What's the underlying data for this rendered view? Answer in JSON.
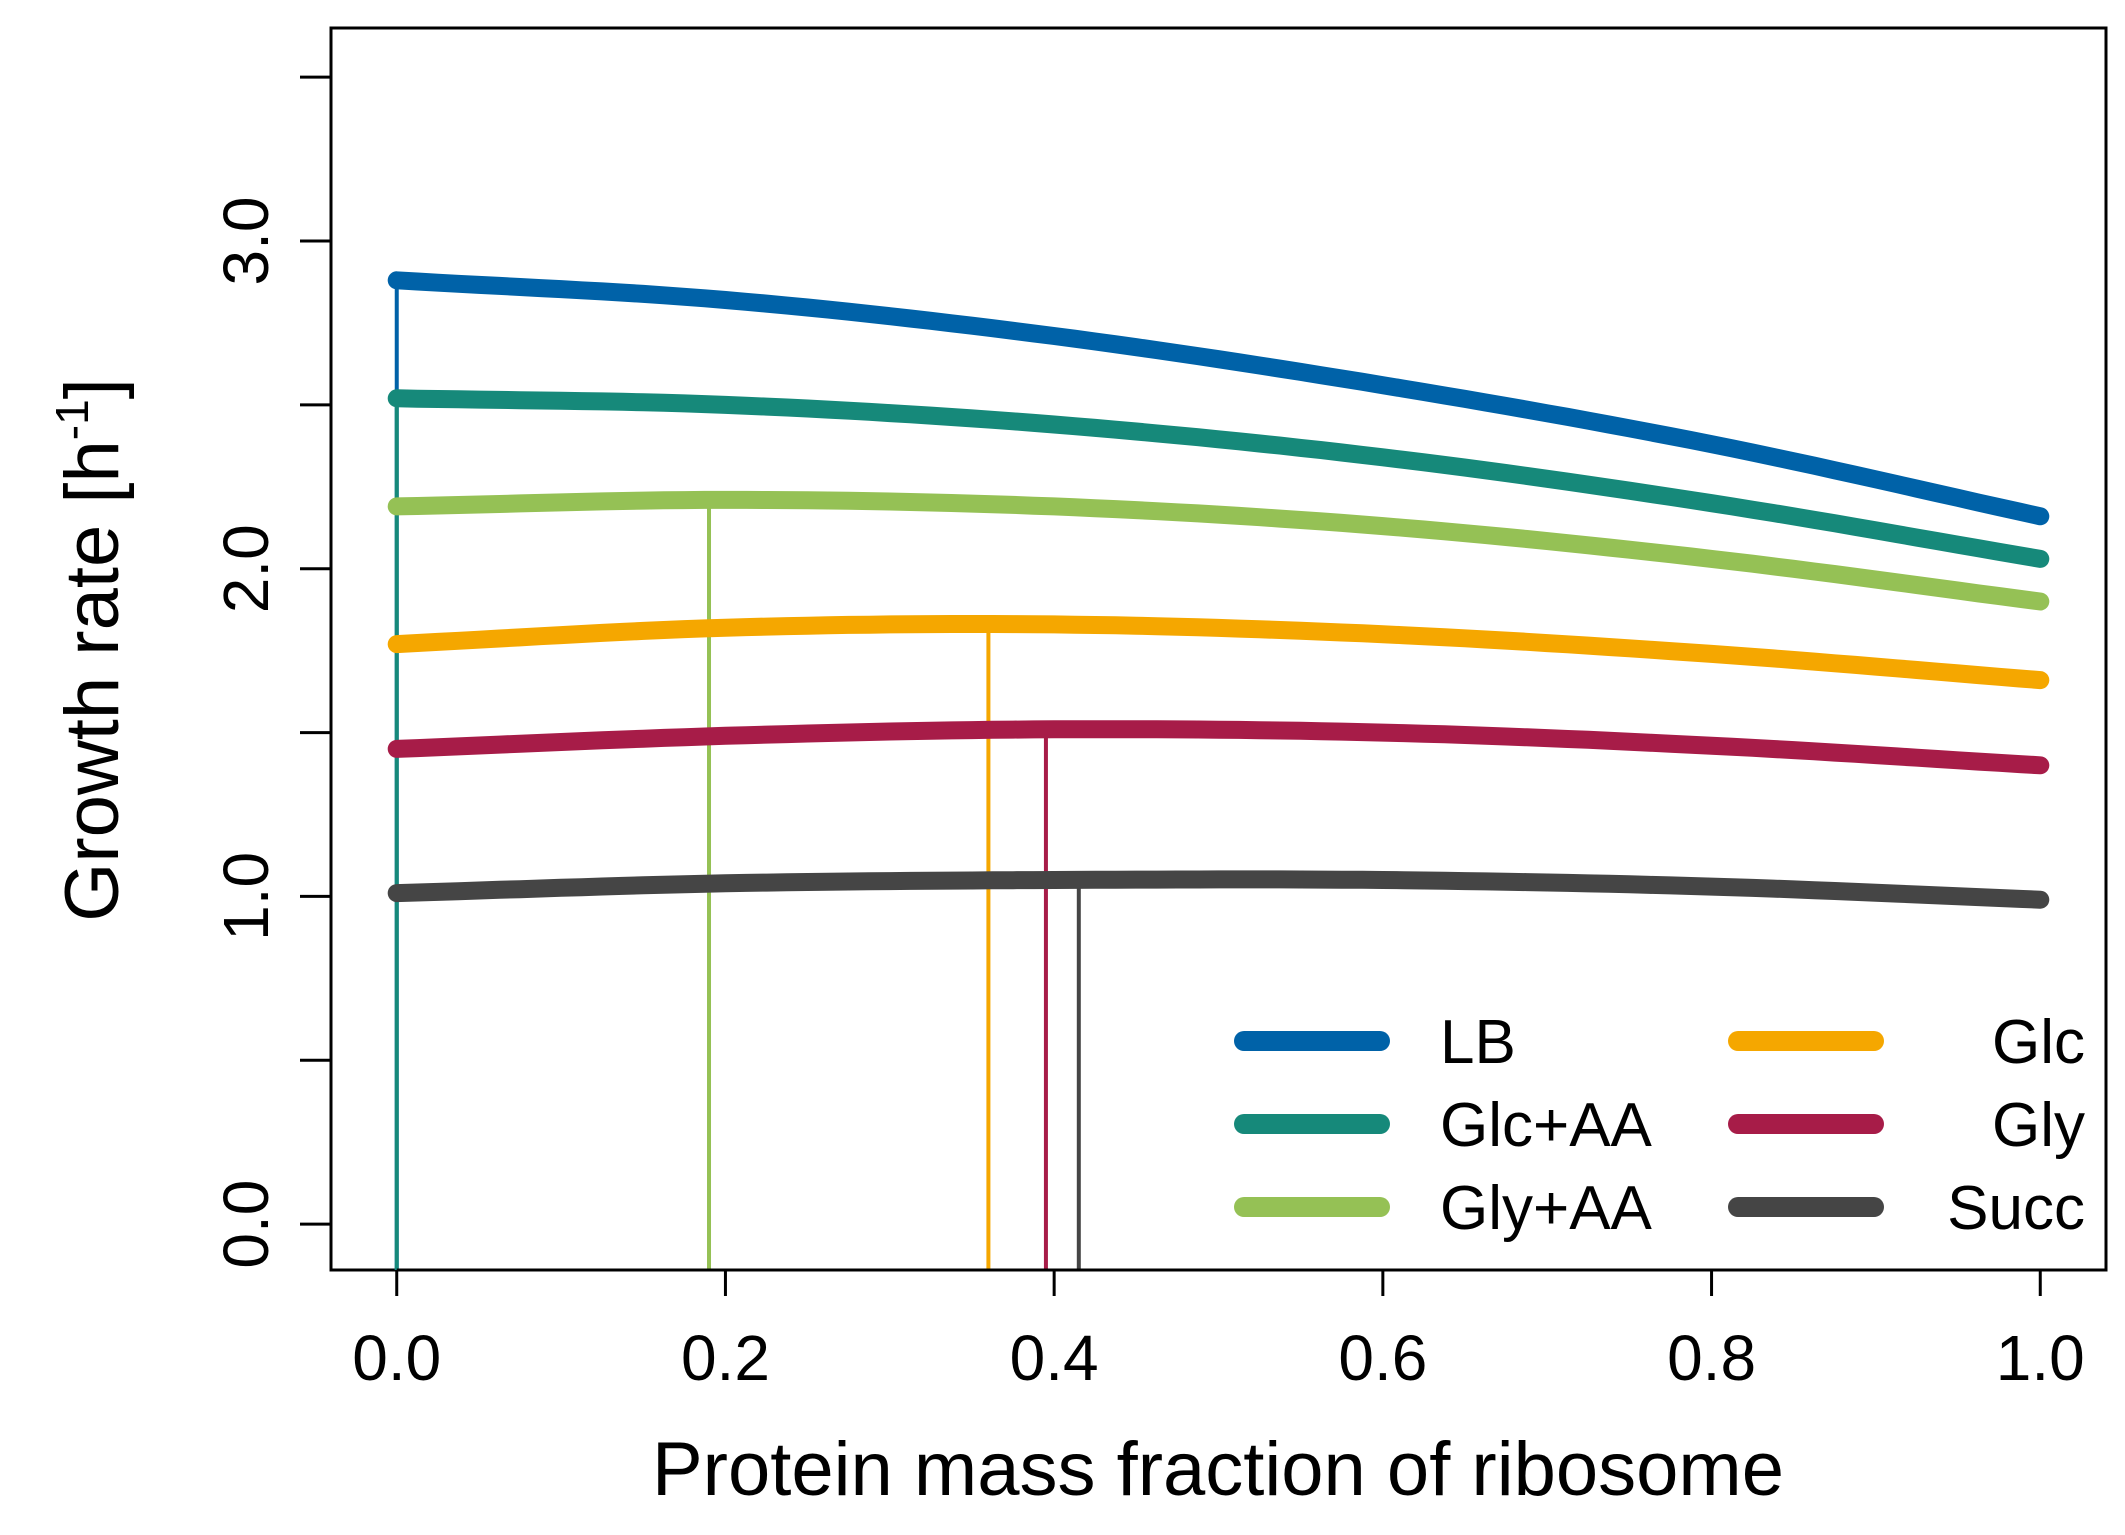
{
  "chart_data": {
    "type": "line",
    "xlabel": "Protein mass fraction of ribosome",
    "ylabel_main": "Growth rate [h",
    "ylabel_sup": "-1",
    "ylabel_close": "]",
    "xlim": [
      -0.04,
      1.04
    ],
    "ylim": [
      -0.14,
      3.65
    ],
    "x_ticks": [
      0.0,
      0.2,
      0.4,
      0.6,
      0.8,
      1.0
    ],
    "x_tick_labels": [
      "0.0",
      "0.2",
      "0.4",
      "0.6",
      "0.8",
      "1.0"
    ],
    "y_ticks": [
      0.0,
      0.5,
      1.0,
      1.5,
      2.0,
      2.5,
      3.0,
      3.5
    ],
    "y_tick_labels": [
      "0.0",
      "",
      "1.0",
      "",
      "2.0",
      "",
      "3.0",
      ""
    ],
    "grid": false,
    "legend_position": "bottom-right",
    "series": [
      {
        "name": "LB",
        "color": "#0062a8",
        "x": [
          0,
          0.2,
          0.4,
          0.6,
          0.8,
          1.0
        ],
        "y": [
          2.88,
          2.82,
          2.71,
          2.56,
          2.38,
          2.16
        ],
        "optimum_x": 0.0
      },
      {
        "name": "Glc+AA",
        "color": "#16897a",
        "x": [
          0,
          0.2,
          0.4,
          0.6,
          0.8,
          1.0
        ],
        "y": [
          2.52,
          2.5,
          2.44,
          2.34,
          2.2,
          2.03
        ],
        "optimum_x": 0.0
      },
      {
        "name": "Gly+AA",
        "color": "#95c155",
        "x": [
          0,
          0.2,
          0.4,
          0.6,
          0.8,
          1.0
        ],
        "y": [
          2.19,
          2.21,
          2.19,
          2.13,
          2.03,
          1.9
        ],
        "optimum_x": 0.19
      },
      {
        "name": "Glc",
        "color": "#f5a700",
        "x": [
          0,
          0.2,
          0.4,
          0.6,
          0.8,
          1.0
        ],
        "y": [
          1.77,
          1.82,
          1.83,
          1.8,
          1.74,
          1.66
        ],
        "optimum_x": 0.36
      },
      {
        "name": "Gly",
        "color": "#a71c48",
        "x": [
          0,
          0.2,
          0.4,
          0.6,
          0.8,
          1.0
        ],
        "y": [
          1.45,
          1.49,
          1.51,
          1.5,
          1.46,
          1.4
        ],
        "optimum_x": 0.395
      },
      {
        "name": "Succ",
        "color": "#454545",
        "x": [
          0,
          0.2,
          0.4,
          0.6,
          0.8,
          1.0
        ],
        "y": [
          1.01,
          1.04,
          1.05,
          1.05,
          1.03,
          0.99
        ],
        "optimum_x": 0.415
      }
    ]
  }
}
